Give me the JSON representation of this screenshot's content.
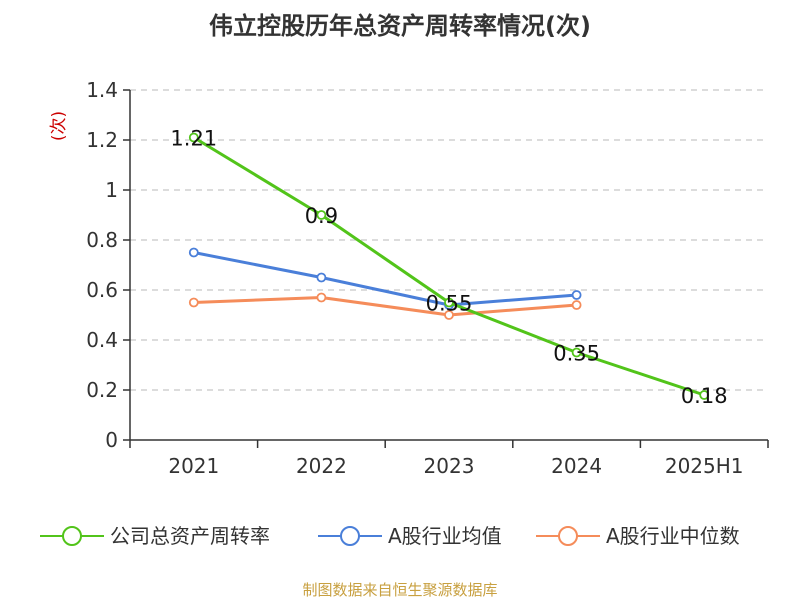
{
  "chart_data": {
    "type": "line",
    "title": "伟立控股历年总资产周转率情况(次)",
    "ylabel": "(次)",
    "categories": [
      "2021",
      "2022",
      "2023",
      "2024",
      "2025H1"
    ],
    "yticks": [
      "0",
      "0.2",
      "0.4",
      "0.6",
      "0.8",
      "1",
      "1.2",
      "1.4"
    ],
    "ylim": [
      0,
      1.4
    ],
    "grid": true,
    "legend_position": "bottom",
    "series": [
      {
        "name": "公司总资产周转率",
        "color": "#52c41a",
        "values": [
          1.21,
          0.9,
          0.55,
          0.35,
          0.18
        ],
        "labels": [
          "1.21",
          "0.9",
          "0.55",
          "0.35",
          "0.18"
        ]
      },
      {
        "name": "A股行业均值",
        "color": "#4a7fd9",
        "values": [
          0.75,
          0.65,
          0.54,
          0.58,
          null
        ]
      },
      {
        "name": "A股行业中位数",
        "color": "#f58c5a",
        "values": [
          0.55,
          0.57,
          0.5,
          0.54,
          null
        ]
      }
    ],
    "source": "制图数据来自恒生聚源数据库"
  }
}
